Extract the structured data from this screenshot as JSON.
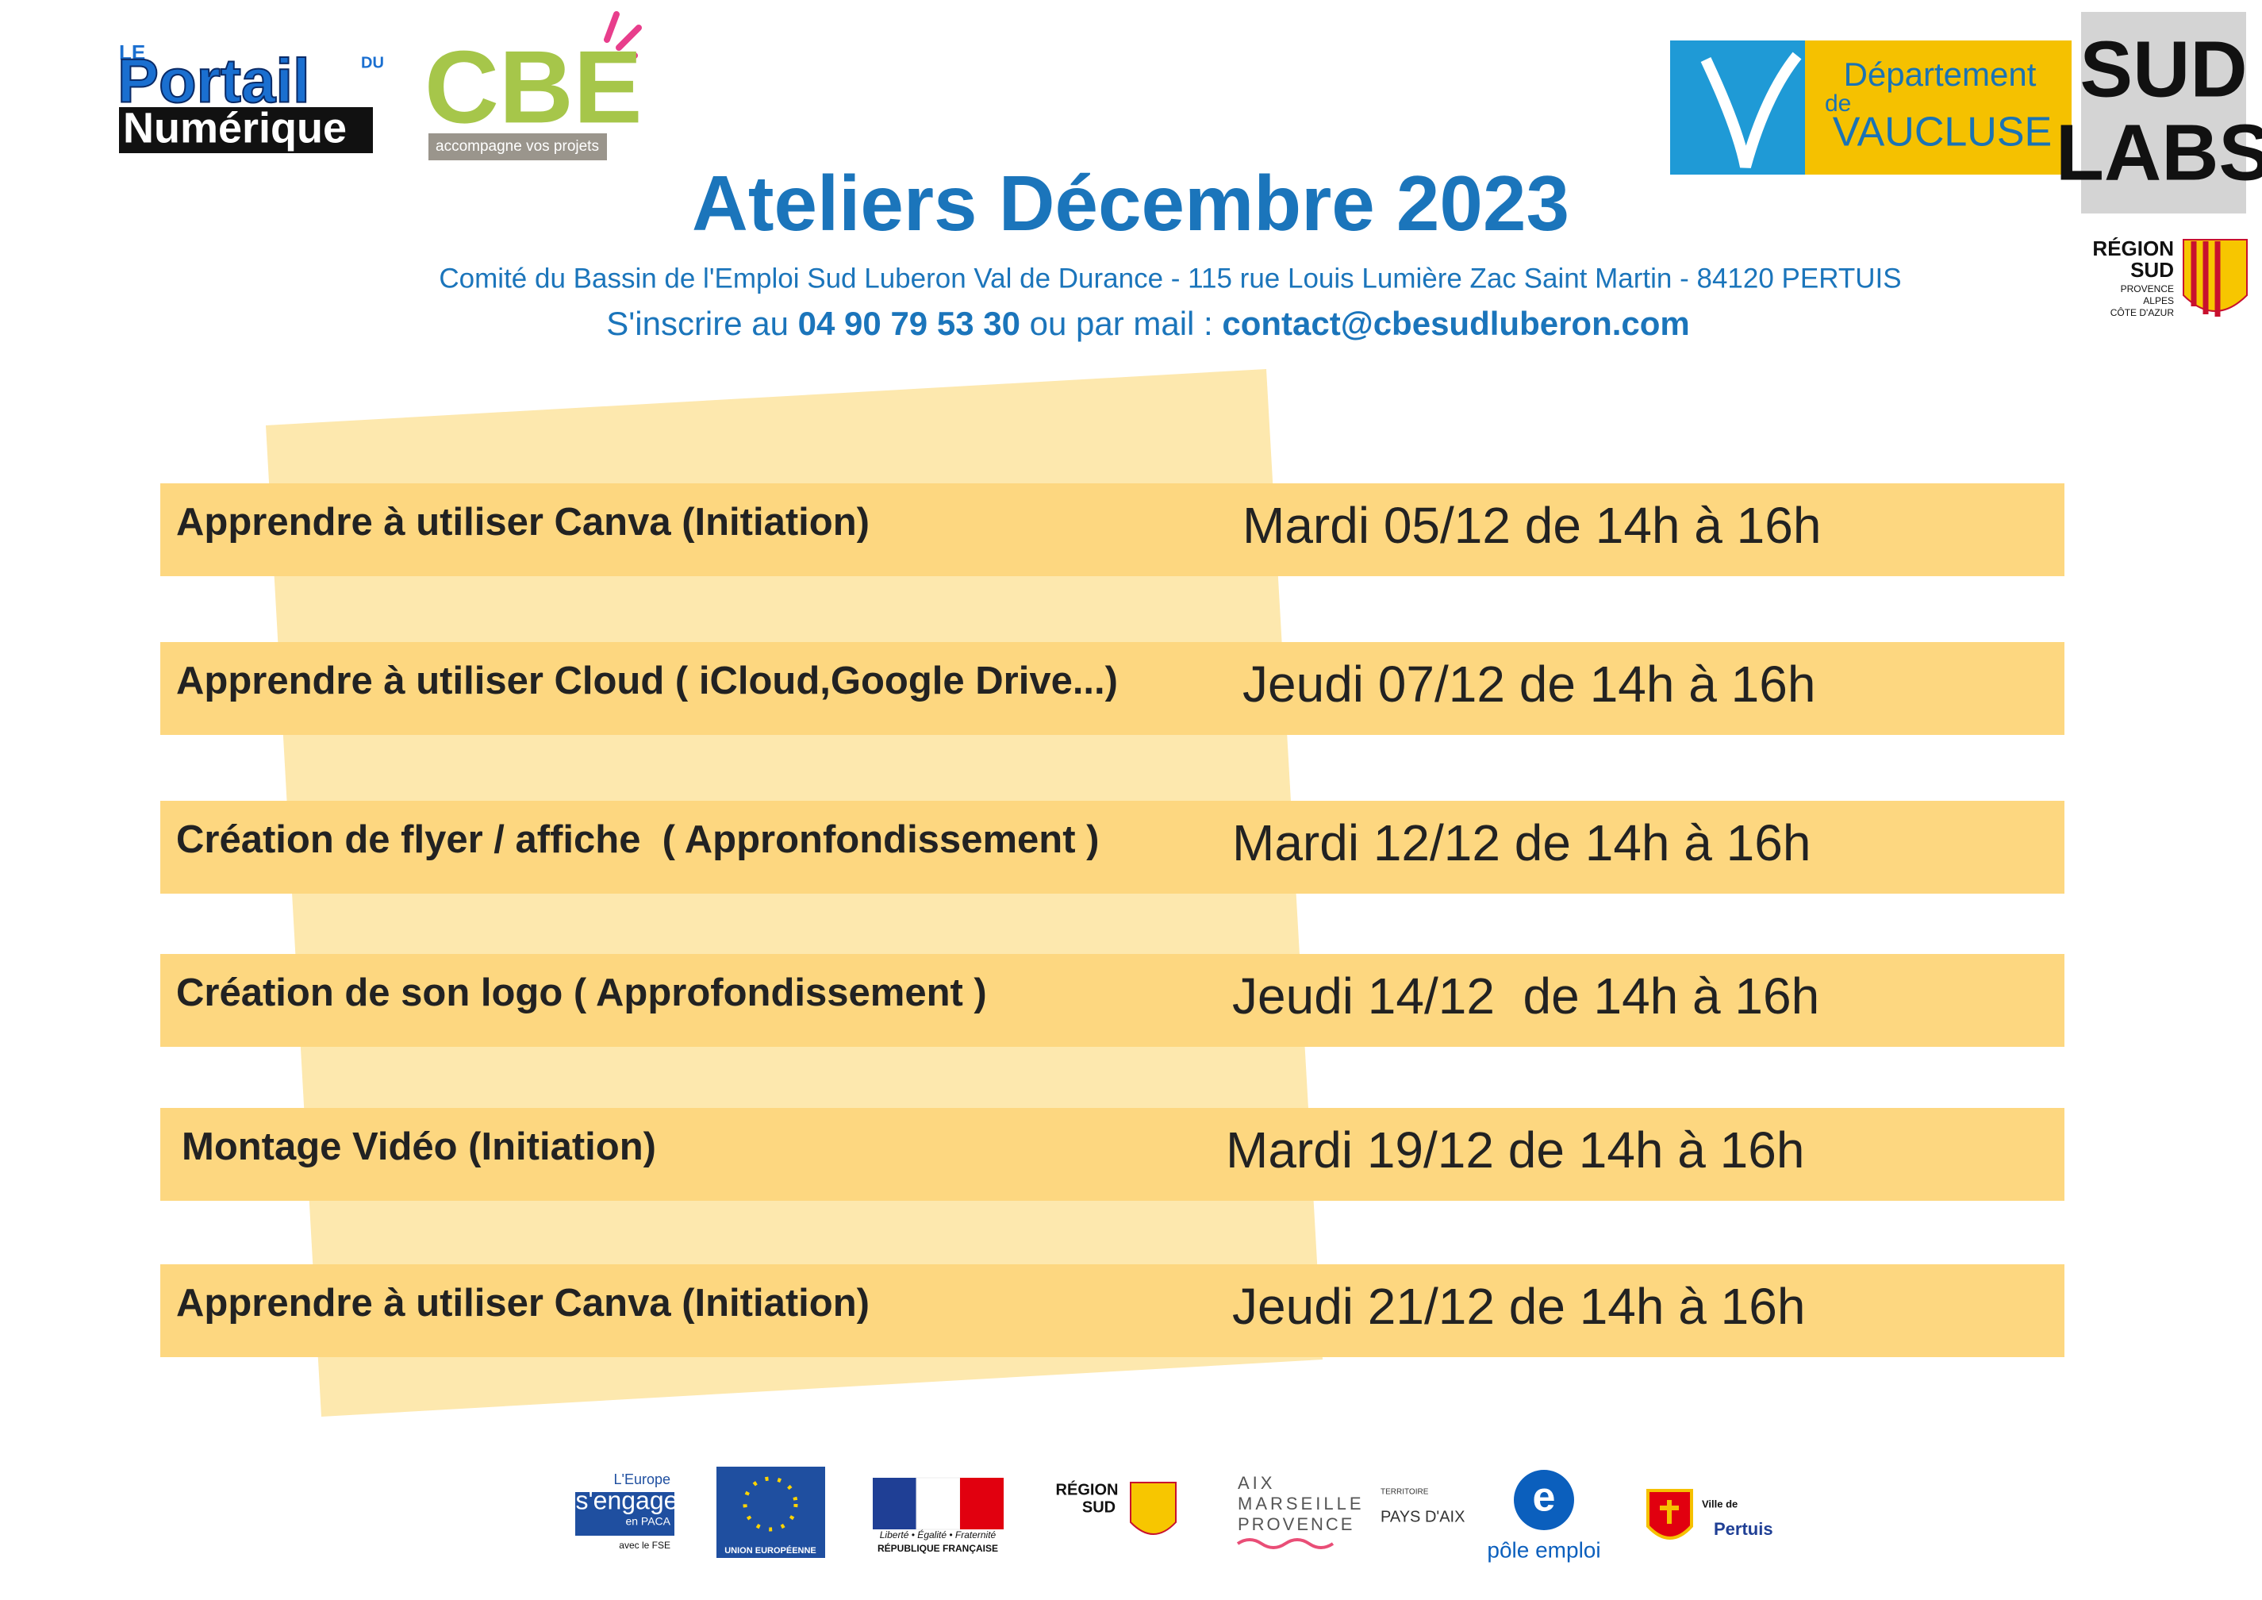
{
  "logos": {
    "portail": {
      "le": "LE",
      "portail": "Portail",
      "du": "DU",
      "numerique": "Numérique"
    },
    "cbe": {
      "name": "CBE",
      "tagline": "accompagne vos projets"
    },
    "vaucluse": {
      "departement": "Département",
      "de": "de",
      "vaucluse": "VAUCLUSE"
    },
    "sudlabs": {
      "sud": "SUD",
      "labs": "LABS"
    },
    "region": {
      "region": "RÉGION",
      "sud": "SUD",
      "sub1": "PROVENCE",
      "sub2": "ALPES",
      "sub3": "CÔTE D'AZUR"
    }
  },
  "title": "Ateliers Décembre 2023",
  "address": "Comité du Bassin de l'Emploi Sud Luberon Val de Durance - 115 rue Louis Lumière Zac Saint Martin - 84120 PERTUIS",
  "contact": {
    "prefix": "S'inscrire au ",
    "phone": "04 90 79 53 30",
    "middle": " ou par mail : ",
    "email": "contact@cbesudluberon.com"
  },
  "workshops": [
    {
      "name": "Apprendre à utiliser Canva (Initiation)",
      "date": "Mardi 05/12 de 14h à 16h"
    },
    {
      "name": "Apprendre à utiliser Cloud ( iCloud,Google Drive...)",
      "date": "Jeudi 07/12 de 14h à 16h"
    },
    {
      "name": "Création de flyer / affiche  ( Appronfondissement )",
      "date": "Mardi 12/12 de 14h à 16h"
    },
    {
      "name": "Création de son logo ( Approfondissement )",
      "date": "Jeudi 14/12  de 14h à 16h"
    },
    {
      "name": "Montage Vidéo (Initiation)",
      "date": "Mardi 19/12 de 14h à 16h"
    },
    {
      "name": "Apprendre à utiliser Canva (Initiation)",
      "date": "Jeudi 21/12 de 14h à 16h"
    }
  ],
  "footer": {
    "europe1": "L'Europe",
    "europe2": "s'engage",
    "europe3": "en PACA",
    "europe4": "avec le FSE",
    "ue": "UNION EUROPÉENNE",
    "rf1": "Liberté • Égalité • Fraternité",
    "rf2": "RÉPUBLIQUE FRANÇAISE",
    "rs1": "RÉGION",
    "rs2": "SUD",
    "amp1": "AIX",
    "amp2": "MARSEILLE",
    "amp3": "PROVENCE",
    "amp4": "TERRITOIRE",
    "amp5": "PAYS D'AIX",
    "pe": "pôle emploi",
    "vp1": "Ville de",
    "vp2": "Pertuis"
  }
}
